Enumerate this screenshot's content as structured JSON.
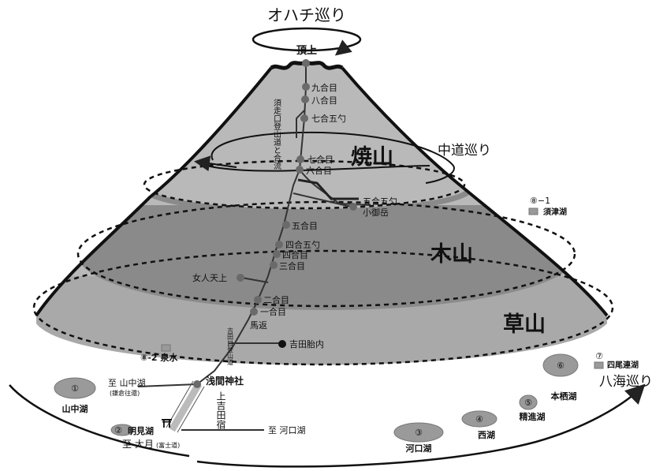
{
  "courses": {
    "ohachi": "オハチ巡り",
    "chudo": "中道巡り",
    "hakkai": "八海巡り"
  },
  "zones": {
    "yakeyama": "焼山",
    "kiyama": "木山",
    "kusayama": "草山"
  },
  "summit": "頂上",
  "stations": {
    "s9": "九合目",
    "s8": "八合目",
    "s75": "七合五勺",
    "s7": "七合目",
    "s6": "六合目",
    "s55": "五合五勺",
    "komitake": "小御岳",
    "s5": "五合目",
    "s45": "四合五勺",
    "s4": "四合目",
    "s3": "三合目",
    "nyonin": "女人天上",
    "s2": "二合目",
    "s1": "一合目",
    "umagaeshi": "馬返",
    "tainai": "吉田胎内",
    "sengen": "浅間神社"
  },
  "vertical": {
    "subashiri": "須走口登山道と合流",
    "yoshida_trail": "吉田口登山道",
    "kamiyoshida": "上吉田宿"
  },
  "lakes": {
    "l1_num": "①",
    "l1": "山中湖",
    "l2_num": "②",
    "l2": "明見湖",
    "l3_num": "③",
    "l3": "河口湖",
    "l4_num": "④",
    "l4": "西湖",
    "l5_num": "⑤",
    "l5": "精進湖",
    "l6_num": "⑥",
    "l6": "本栖湖",
    "l7_num": "⑦",
    "l7": "四尾連湖",
    "l81": "⑧−1",
    "l81_name": "須津湖",
    "l82": "⑧-2 泉水"
  },
  "roads": {
    "to_yamanaka": "至 山中湖",
    "kamakura": "(鎌倉往還)",
    "to_kawaguchi": "至 河口湖",
    "to_otsuki": "至 大月",
    "fujimichi": "(富士道)"
  },
  "shrine_icon": "torii-icon",
  "colors": {
    "yakeyama": "#b9b9b9",
    "kiyama": "#8a8a8a",
    "kusayama": "#a9a9a9",
    "outline": "#111111",
    "station": "#6a6a6a"
  }
}
